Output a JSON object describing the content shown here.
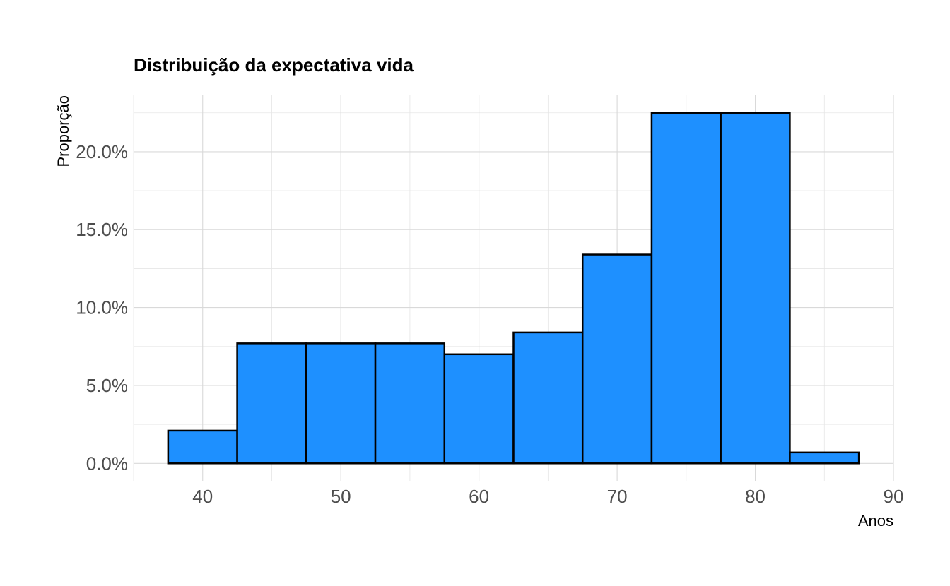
{
  "chart_data": {
    "type": "bar",
    "title": "Distribuição da expectativa vida",
    "xlabel": "Anos",
    "ylabel": "Proporção",
    "bins": [
      {
        "from": 37.5,
        "to": 42.5,
        "value": 0.021
      },
      {
        "from": 42.5,
        "to": 47.5,
        "value": 0.077
      },
      {
        "from": 47.5,
        "to": 52.5,
        "value": 0.077
      },
      {
        "from": 52.5,
        "to": 57.5,
        "value": 0.077
      },
      {
        "from": 57.5,
        "to": 62.5,
        "value": 0.07
      },
      {
        "from": 62.5,
        "to": 67.5,
        "value": 0.084
      },
      {
        "from": 67.5,
        "to": 72.5,
        "value": 0.134
      },
      {
        "from": 72.5,
        "to": 77.5,
        "value": 0.225
      },
      {
        "from": 77.5,
        "to": 82.5,
        "value": 0.225
      },
      {
        "from": 82.5,
        "to": 87.5,
        "value": 0.007
      }
    ],
    "xlim": [
      35,
      90
    ],
    "ylim": [
      -0.0112,
      0.2362
    ],
    "x_ticks": [
      40,
      50,
      60,
      70,
      80,
      90
    ],
    "x_tick_labels": [
      "40",
      "50",
      "60",
      "70",
      "80",
      "90"
    ],
    "x_minor_ticks": [
      35,
      45,
      55,
      65,
      75,
      85
    ],
    "y_ticks": [
      0,
      0.05,
      0.1,
      0.15,
      0.2
    ],
    "y_tick_labels": [
      "0.0%",
      "5.0%",
      "10.0%",
      "15.0%",
      "20.0%"
    ],
    "y_minor_ticks": [
      0.025,
      0.075,
      0.125,
      0.175,
      0.225
    ],
    "bar_color": "#1E90FF",
    "bar_outline": "#000000",
    "grid": true,
    "legend": "none"
  }
}
